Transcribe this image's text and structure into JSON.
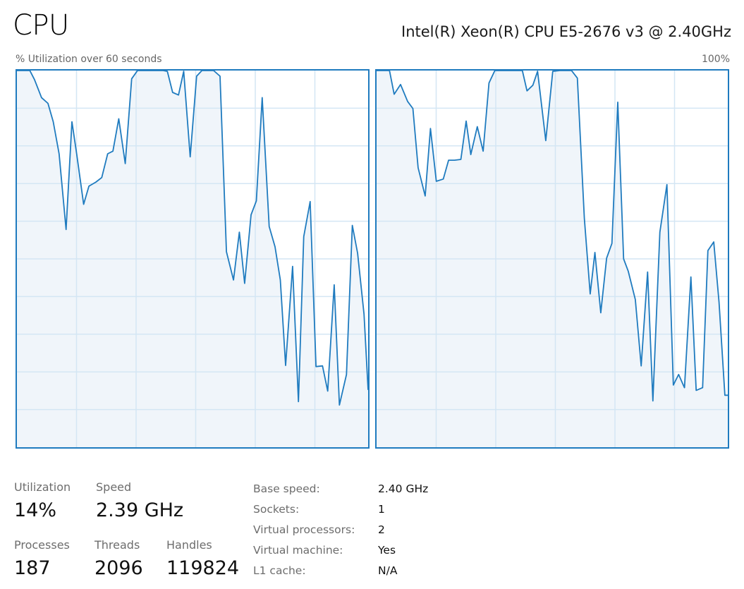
{
  "header": {
    "title": "CPU",
    "cpu_model": "Intel(R) Xeon(R) CPU E5-2676 v3 @ 2.40GHz",
    "graph_caption": "% Utilization over 60 seconds",
    "graph_max": "100%"
  },
  "colors": {
    "line": "#1f7bbf",
    "fill": "#f0f5fa",
    "grid": "#d4e6f4",
    "border": "#1f7bbf"
  },
  "stats": {
    "utilization": {
      "label": "Utilization",
      "value": "14%"
    },
    "speed": {
      "label": "Speed",
      "value": "2.39 GHz"
    },
    "processes": {
      "label": "Processes",
      "value": "187"
    },
    "threads": {
      "label": "Threads",
      "value": "2096"
    },
    "handles": {
      "label": "Handles",
      "value": "119824"
    }
  },
  "info": [
    {
      "key": "Base speed:",
      "value": "2.40 GHz"
    },
    {
      "key": "Sockets:",
      "value": "1"
    },
    {
      "key": "Virtual processors:",
      "value": "2"
    },
    {
      "key": "Virtual machine:",
      "value": "Yes"
    },
    {
      "key": "L1 cache:",
      "value": "N/A"
    }
  ],
  "chart_data": [
    {
      "type": "area",
      "title": "Logical processor 0",
      "xlabel": "% Utilization over 60 seconds",
      "ylabel": "",
      "ylim": [
        0,
        100
      ],
      "xlim": [
        0,
        60
      ],
      "grid": {
        "rows": 10,
        "cols": 6
      },
      "x": [
        0,
        2.2,
        3,
        4.2,
        5.3,
        6.2,
        7.2,
        8.4,
        9.4,
        10.2,
        11.4,
        12.3,
        13.5,
        14.5,
        15.5,
        16.4,
        17.4,
        18.5,
        19.6,
        20.6,
        22.6,
        25,
        25.7,
        26.6,
        27.6,
        28.5,
        29.6,
        30.7,
        31.6,
        33.6,
        34.7,
        35.8,
        37,
        38,
        38.9,
        40,
        40.9,
        41.9,
        43.1,
        44.1,
        45,
        45.9,
        47.1,
        48.1,
        49,
        50.1,
        51.1,
        52.2,
        53.1,
        54.2,
        55.1,
        56.3,
        57.3,
        58.2,
        59.3,
        60
      ],
      "values": [
        100,
        100,
        97.6,
        92.8,
        91.3,
        86.4,
        77.9,
        57.8,
        86.4,
        77.9,
        64.5,
        69.3,
        70.4,
        71.6,
        77.9,
        78.6,
        87.2,
        75.3,
        97.8,
        100,
        100,
        100,
        99.8,
        94.2,
        93.5,
        99.8,
        77.1,
        98.5,
        100,
        100,
        98.5,
        51.9,
        44.4,
        57.1,
        43.5,
        61.7,
        65.4,
        92.8,
        58.6,
        53.2,
        44.4,
        21.7,
        48,
        12.1,
        55.9,
        65.2,
        21.4,
        21.6,
        14.9,
        43.1,
        11.2,
        19.3,
        58.9,
        51.5,
        35.3,
        15.2
      ]
    },
    {
      "type": "area",
      "title": "Logical processor 1",
      "xlabel": "% Utilization over 60 seconds",
      "ylabel": "",
      "ylim": [
        0,
        100
      ],
      "xlim": [
        0,
        60
      ],
      "grid": {
        "rows": 10,
        "cols": 6
      },
      "x": [
        0,
        2.2,
        3,
        4.1,
        5.3,
        6.2,
        7.1,
        8.3,
        9.2,
        10.2,
        11.4,
        12.3,
        13.3,
        14.4,
        15.3,
        16.1,
        17.2,
        18.2,
        19.2,
        20.2,
        22.3,
        24.9,
        25.7,
        26.7,
        27.5,
        28.9,
        30.1,
        31.3,
        33.3,
        34.3,
        35.5,
        36.5,
        37.3,
        38.3,
        39.3,
        40.2,
        41.2,
        42.2,
        43,
        44.2,
        45.2,
        46.3,
        47.2,
        48.4,
        49.6,
        50.7,
        51.6,
        52.6,
        53.7,
        54.6,
        55.7,
        56.6,
        57.6,
        58.5,
        59.5,
        60
      ],
      "values": [
        100,
        100,
        93.7,
        96.3,
        91.8,
        89.9,
        74.2,
        66.7,
        84.6,
        70.6,
        71.2,
        76.2,
        76.2,
        76.4,
        86.6,
        77.7,
        85.1,
        78.6,
        96.7,
        100,
        100,
        100,
        94.6,
        96.1,
        99.8,
        81.4,
        99.8,
        100,
        100,
        98,
        60.8,
        40.7,
        51.7,
        35.7,
        50.2,
        54.1,
        91.6,
        50,
        46.7,
        39.2,
        21.6,
        46.5,
        12.3,
        57.1,
        69.7,
        16.5,
        19.3,
        15.8,
        45.2,
        15.1,
        15.8,
        52.2,
        54.5,
        38.5,
        13.8,
        13.8
      ]
    }
  ]
}
